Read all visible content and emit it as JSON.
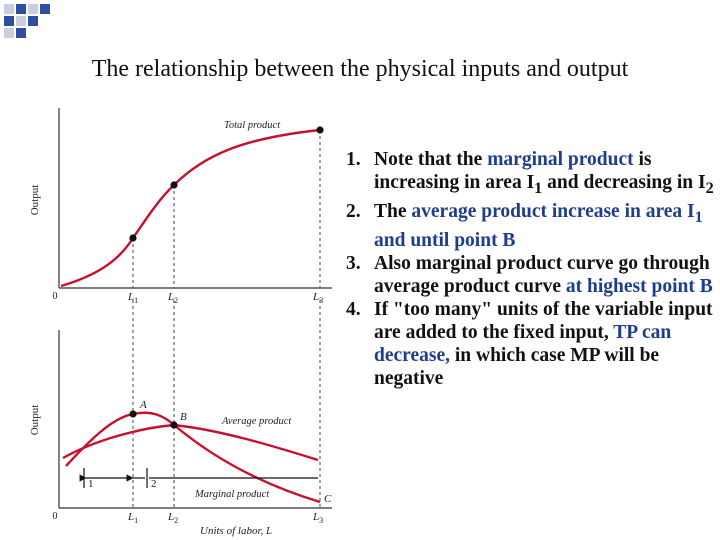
{
  "slide": {
    "title": "The relationship between the physical inputs and output"
  },
  "figure": {
    "top_panel": {
      "ylabel": "Output",
      "curve_label": "Total product",
      "origin": "0",
      "ticks": {
        "l1": {
          "main": "L",
          "sub": "1"
        },
        "l2": {
          "main": "L",
          "sub": "2"
        },
        "l3": {
          "main": "L",
          "sub": "3"
        }
      }
    },
    "bottom_panel": {
      "ylabel": "Output",
      "point_a": "A",
      "point_b": "B",
      "point_c": "C",
      "avg_label": "Average product",
      "marg_label": "Marginal product",
      "origin": "0",
      "region_1": "1",
      "region_2": "2",
      "xlabel": "Units of labor, L",
      "ticks": {
        "l1": {
          "main": "L",
          "sub": "1"
        },
        "l2": {
          "main": "L",
          "sub": "2"
        },
        "l3": {
          "main": "L",
          "sub": "3"
        }
      }
    }
  },
  "notes": [
    {
      "num": "1.",
      "parts": [
        {
          "text": "Note that the "
        },
        {
          "text": "marginal product",
          "hl": true
        },
        {
          "text": " is increasing in area I"
        },
        {
          "text": "1",
          "sub": true
        },
        {
          "text": " and decreasing in I"
        },
        {
          "text": "2",
          "sub": true
        }
      ]
    },
    {
      "num": "2.",
      "parts": [
        {
          "text": "The "
        },
        {
          "text": "average product increase in area I",
          "hl": true
        },
        {
          "text": "1",
          "sub": true,
          "hl": true
        },
        {
          "text": " and until point B",
          "hl": true
        }
      ]
    },
    {
      "num": "3.",
      "parts": [
        {
          "text": "Also marginal product curve go through average product curve "
        },
        {
          "text": "at highest point B",
          "hl": true
        }
      ]
    },
    {
      "num": "4.",
      "parts": [
        {
          "text": "If \"too many\" units of the variable input are added to the fixed input, "
        },
        {
          "text": "TP can decrease,",
          "hl": true
        },
        {
          "text": " in which case MP will be negative"
        }
      ]
    }
  ],
  "colors": {
    "curve": "#c8102e",
    "highlight": "#1f3c8f",
    "deco_blue": "#2e4f9e",
    "deco_gray": "#c9cfe0"
  }
}
